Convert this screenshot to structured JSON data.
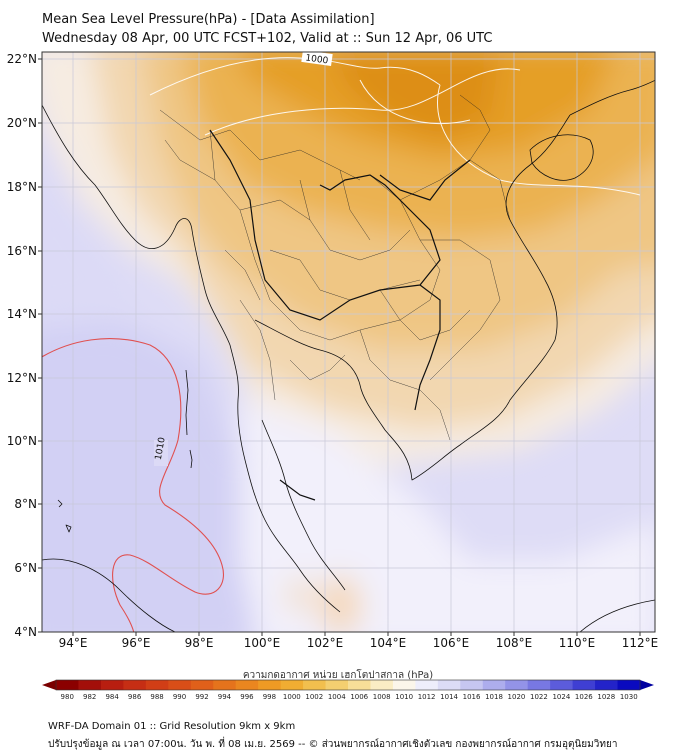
{
  "header": {
    "title_line1": "Mean Sea Level Pressure(hPa) - [Data Assimilation]",
    "title_line2": "Wednesday 08 Apr, 00 UTC FCST+102, Valid at :: Sun 12 Apr, 06 UTC"
  },
  "map": {
    "lon_labels": [
      "94°E",
      "96°E",
      "98°E",
      "100°E",
      "102°E",
      "104°E",
      "106°E",
      "108°E",
      "110°E",
      "112°E"
    ],
    "lat_labels": [
      "22°N",
      "20°N",
      "18°N",
      "16°N",
      "14°N",
      "12°N",
      "10°N",
      "8°N",
      "6°N",
      "4°N"
    ],
    "isobar_labels": [
      {
        "text": "1000",
        "color": "#222222"
      },
      {
        "text": "1010",
        "color": "#222222"
      }
    ],
    "colors": {
      "high_pressure_fill": "#d8d8f4",
      "low_pressure_fill": "#e39a14",
      "isobar_1010_line": "#e05050",
      "coastline": "#111111"
    }
  },
  "colorbar": {
    "title": "ความกดอากาศ หน่วย เฮกโตปาสกาล (hPa)",
    "ticks": [
      "980",
      "982",
      "984",
      "986",
      "988",
      "990",
      "992",
      "994",
      "996",
      "998",
      "1000",
      "1002",
      "1004",
      "1006",
      "1008",
      "1010",
      "1012",
      "1014",
      "1016",
      "1018",
      "1020",
      "1022",
      "1024",
      "1026",
      "1028",
      "1030"
    ]
  },
  "footer": {
    "line1": "WRF-DA Domain 01 :: Grid Resolution 9km x 9km",
    "line2": "ปรับปรุงข้อมูล ณ เวลา 07:00น. วัน พ. ที่ 08 เม.ย. 2569 -- © ส่วนพยากรณ์อากาศเชิงตัวเลข กองพยากรณ์อากาศ กรมอุตุนิยมวิทยา"
  }
}
